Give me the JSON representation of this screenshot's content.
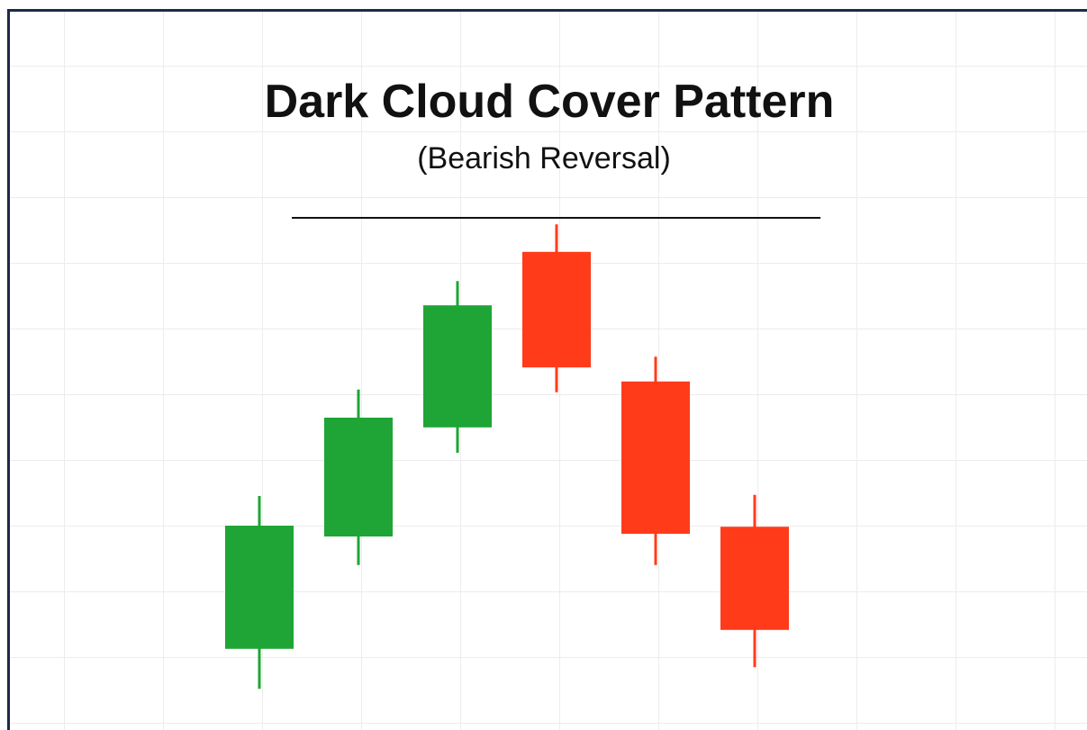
{
  "chart_data": {
    "type": "candlestick",
    "title": "Dark Cloud Cover Pattern",
    "subtitle": "(Bearish Reversal)",
    "categories": [
      null,
      null,
      null,
      null,
      null,
      null
    ],
    "open": [
      13.2,
      34,
      54.2,
      86.7,
      62.7,
      35.8
    ],
    "high": [
      41.5,
      61.2,
      81.3,
      91.8,
      67.3,
      41.7
    ],
    "low": [
      5.8,
      28.7,
      49.5,
      60.7,
      28.7,
      9.8
    ],
    "close": [
      36,
      56,
      76.8,
      65.3,
      34.5,
      16.7
    ],
    "up_color": "#1ea535",
    "down_color": "#ff3b1a",
    "resistance_level": 93,
    "ylim": [
      0,
      100
    ],
    "grid": true
  }
}
